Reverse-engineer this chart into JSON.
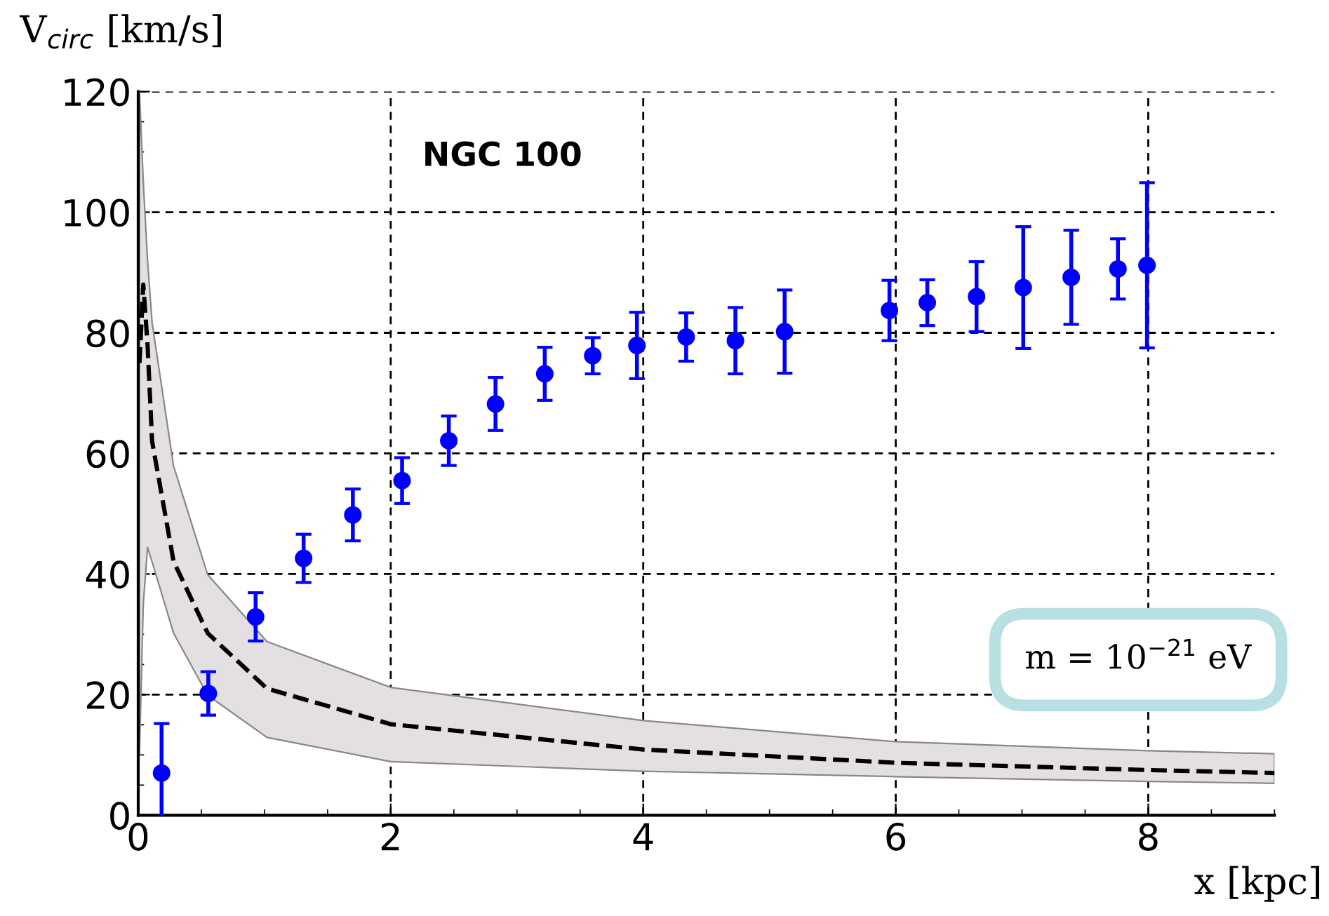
{
  "chart_data": {
    "type": "scatter",
    "title": "NGC 100",
    "xlabel": "x [kpc]",
    "ylabel": "V$_{circ}$ [km/s]",
    "annotations": [
      "m = 10$^{−21}$ eV"
    ],
    "xlim": [
      0,
      9
    ],
    "xticks": [
      0,
      2,
      4,
      6,
      8
    ],
    "ylim": [
      0,
      120
    ],
    "yticks": [
      0,
      20,
      40,
      60,
      80,
      100,
      120
    ],
    "grid": true,
    "series": [
      {
        "type": "line",
        "color": "#000000",
        "line_style": "dashed",
        "marker": "none",
        "x": [
          0.01,
          0.04,
          0.074,
          0.11,
          0.28,
          0.55,
          1.02,
          2,
          4,
          6,
          8,
          9
        ],
        "values": [
          75,
          88,
          78,
          62,
          42.1,
          30.2,
          21.0,
          15.1,
          10.9,
          8.7,
          7.5,
          7.0
        ],
        "lower": [
          10,
          35,
          44.4,
          42,
          30.2,
          19.9,
          12.9,
          8.9,
          7.3,
          6.4,
          5.6,
          5.3
        ],
        "upper": [
          120,
          105,
          92,
          81.7,
          57.9,
          39.9,
          28.8,
          21.2,
          15.7,
          12.2,
          10.7,
          10.2
        ]
      },
      {
        "color": "#0000ff",
        "marker": "circle",
        "x": [
          0.185,
          0.555,
          0.93,
          1.31,
          1.7,
          2.09,
          2.46,
          2.83,
          3.22,
          3.6,
          3.95,
          4.34,
          4.73,
          5.12,
          5.95,
          6.25,
          6.64,
          7.01,
          7.39,
          7.76,
          7.99
        ],
        "values": [
          7.0,
          20.2,
          32.9,
          42.6,
          49.8,
          55.5,
          62.1,
          68.2,
          73.2,
          76.2,
          77.9,
          79.3,
          78.7,
          80.2,
          83.7,
          85.0,
          86.0,
          87.5,
          89.2,
          90.6,
          91.2
        ],
        "errors": [
          8.2,
          3.6,
          4.0,
          4.0,
          4.3,
          3.8,
          4.1,
          4.4,
          4.4,
          3.0,
          5.5,
          4.0,
          5.5,
          6.9,
          5.0,
          3.8,
          5.8,
          10.1,
          7.8,
          5.0,
          13.7
        ]
      }
    ]
  }
}
